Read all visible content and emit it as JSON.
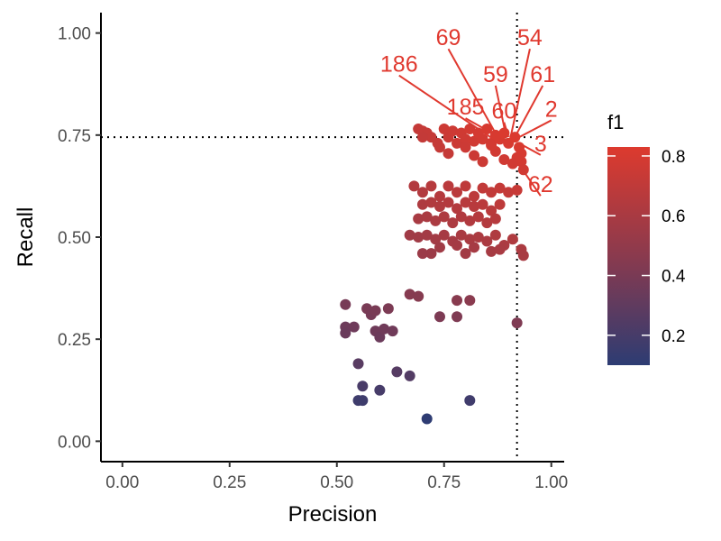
{
  "chart_data": {
    "type": "scatter",
    "xlabel": "Precision",
    "ylabel": "Recall",
    "xlim": [
      -0.05,
      1.03
    ],
    "ylim": [
      -0.05,
      1.05
    ],
    "x_ticks": [
      0.0,
      0.25,
      0.5,
      0.75,
      1.0
    ],
    "x_tick_labels": [
      "0.00",
      "0.25",
      "0.50",
      "0.75",
      "1.00"
    ],
    "y_ticks": [
      0.0,
      0.25,
      0.5,
      0.75,
      1.0
    ],
    "y_tick_labels": [
      "0.00",
      "0.25",
      "0.50",
      "0.75",
      "1.00"
    ],
    "reference_lines": {
      "vertical_x": 0.92,
      "horizontal_y": 0.745,
      "style": "dotted"
    },
    "color_scale": {
      "variable": "f1",
      "low": 0.1,
      "high": 0.83,
      "low_color": "#2d3c73",
      "high_color": "#dd3a2e",
      "ticks": [
        0.2,
        0.4,
        0.6,
        0.8
      ],
      "tick_labels": [
        "0.2",
        "0.4",
        "0.6",
        "0.8"
      ]
    },
    "legend": {
      "title": "f1",
      "position": "right"
    },
    "points": [
      {
        "x": 0.69,
        "y": 0.765
      },
      {
        "x": 0.7,
        "y": 0.76
      },
      {
        "x": 0.71,
        "y": 0.755
      },
      {
        "x": 0.72,
        "y": 0.745
      },
      {
        "x": 0.735,
        "y": 0.73
      },
      {
        "x": 0.75,
        "y": 0.765
      },
      {
        "x": 0.76,
        "y": 0.745
      },
      {
        "x": 0.77,
        "y": 0.76
      },
      {
        "x": 0.78,
        "y": 0.73
      },
      {
        "x": 0.79,
        "y": 0.755
      },
      {
        "x": 0.8,
        "y": 0.74
      },
      {
        "x": 0.81,
        "y": 0.765
      },
      {
        "x": 0.82,
        "y": 0.735
      },
      {
        "x": 0.83,
        "y": 0.755
      },
      {
        "x": 0.84,
        "y": 0.74
      },
      {
        "x": 0.85,
        "y": 0.765
      },
      {
        "x": 0.86,
        "y": 0.73
      },
      {
        "x": 0.87,
        "y": 0.75
      },
      {
        "x": 0.88,
        "y": 0.74
      },
      {
        "x": 0.89,
        "y": 0.755
      },
      {
        "x": 0.9,
        "y": 0.73
      },
      {
        "x": 0.915,
        "y": 0.745
      },
      {
        "x": 0.925,
        "y": 0.72
      },
      {
        "x": 0.93,
        "y": 0.705
      },
      {
        "x": 0.93,
        "y": 0.685
      },
      {
        "x": 0.935,
        "y": 0.665
      },
      {
        "x": 0.92,
        "y": 0.695
      },
      {
        "x": 0.76,
        "y": 0.705
      },
      {
        "x": 0.8,
        "y": 0.72
      },
      {
        "x": 0.82,
        "y": 0.7
      },
      {
        "x": 0.84,
        "y": 0.685
      },
      {
        "x": 0.87,
        "y": 0.71
      },
      {
        "x": 0.89,
        "y": 0.69
      },
      {
        "x": 0.91,
        "y": 0.68
      },
      {
        "x": 0.7,
        "y": 0.745
      },
      {
        "x": 0.74,
        "y": 0.72
      },
      {
        "x": 0.86,
        "y": 0.725
      },
      {
        "x": 0.68,
        "y": 0.625
      },
      {
        "x": 0.7,
        "y": 0.61
      },
      {
        "x": 0.72,
        "y": 0.625
      },
      {
        "x": 0.74,
        "y": 0.6
      },
      {
        "x": 0.76,
        "y": 0.625
      },
      {
        "x": 0.78,
        "y": 0.61
      },
      {
        "x": 0.8,
        "y": 0.625
      },
      {
        "x": 0.82,
        "y": 0.6
      },
      {
        "x": 0.84,
        "y": 0.62
      },
      {
        "x": 0.86,
        "y": 0.61
      },
      {
        "x": 0.88,
        "y": 0.62
      },
      {
        "x": 0.9,
        "y": 0.61
      },
      {
        "x": 0.92,
        "y": 0.615
      },
      {
        "x": 0.7,
        "y": 0.58
      },
      {
        "x": 0.72,
        "y": 0.585
      },
      {
        "x": 0.74,
        "y": 0.575
      },
      {
        "x": 0.76,
        "y": 0.585
      },
      {
        "x": 0.78,
        "y": 0.57
      },
      {
        "x": 0.8,
        "y": 0.585
      },
      {
        "x": 0.82,
        "y": 0.575
      },
      {
        "x": 0.84,
        "y": 0.58
      },
      {
        "x": 0.86,
        "y": 0.565
      },
      {
        "x": 0.88,
        "y": 0.58
      },
      {
        "x": 0.69,
        "y": 0.545
      },
      {
        "x": 0.71,
        "y": 0.55
      },
      {
        "x": 0.73,
        "y": 0.54
      },
      {
        "x": 0.75,
        "y": 0.55
      },
      {
        "x": 0.77,
        "y": 0.535
      },
      {
        "x": 0.79,
        "y": 0.55
      },
      {
        "x": 0.81,
        "y": 0.54
      },
      {
        "x": 0.83,
        "y": 0.55
      },
      {
        "x": 0.85,
        "y": 0.535
      },
      {
        "x": 0.87,
        "y": 0.545
      },
      {
        "x": 0.67,
        "y": 0.505
      },
      {
        "x": 0.69,
        "y": 0.5
      },
      {
        "x": 0.71,
        "y": 0.505
      },
      {
        "x": 0.73,
        "y": 0.495
      },
      {
        "x": 0.75,
        "y": 0.505
      },
      {
        "x": 0.77,
        "y": 0.49
      },
      {
        "x": 0.79,
        "y": 0.505
      },
      {
        "x": 0.81,
        "y": 0.495
      },
      {
        "x": 0.83,
        "y": 0.5
      },
      {
        "x": 0.85,
        "y": 0.49
      },
      {
        "x": 0.87,
        "y": 0.505
      },
      {
        "x": 0.89,
        "y": 0.48
      },
      {
        "x": 0.91,
        "y": 0.495
      },
      {
        "x": 0.93,
        "y": 0.47
      },
      {
        "x": 0.935,
        "y": 0.455
      },
      {
        "x": 0.72,
        "y": 0.46
      },
      {
        "x": 0.74,
        "y": 0.475
      },
      {
        "x": 0.78,
        "y": 0.48
      },
      {
        "x": 0.8,
        "y": 0.46
      },
      {
        "x": 0.82,
        "y": 0.475
      },
      {
        "x": 0.86,
        "y": 0.465
      },
      {
        "x": 0.88,
        "y": 0.47
      },
      {
        "x": 0.7,
        "y": 0.46
      },
      {
        "x": 0.67,
        "y": 0.36
      },
      {
        "x": 0.69,
        "y": 0.355
      },
      {
        "x": 0.78,
        "y": 0.345
      },
      {
        "x": 0.81,
        "y": 0.345
      },
      {
        "x": 0.74,
        "y": 0.305
      },
      {
        "x": 0.78,
        "y": 0.305
      },
      {
        "x": 0.92,
        "y": 0.29
      },
      {
        "x": 0.52,
        "y": 0.335
      },
      {
        "x": 0.57,
        "y": 0.325
      },
      {
        "x": 0.58,
        "y": 0.31
      },
      {
        "x": 0.59,
        "y": 0.32
      },
      {
        "x": 0.62,
        "y": 0.325
      },
      {
        "x": 0.52,
        "y": 0.28
      },
      {
        "x": 0.52,
        "y": 0.265
      },
      {
        "x": 0.54,
        "y": 0.28
      },
      {
        "x": 0.59,
        "y": 0.27
      },
      {
        "x": 0.6,
        "y": 0.255
      },
      {
        "x": 0.61,
        "y": 0.275
      },
      {
        "x": 0.63,
        "y": 0.27
      },
      {
        "x": 0.55,
        "y": 0.19
      },
      {
        "x": 0.64,
        "y": 0.17
      },
      {
        "x": 0.67,
        "y": 0.16
      },
      {
        "x": 0.56,
        "y": 0.135
      },
      {
        "x": 0.6,
        "y": 0.125
      },
      {
        "x": 0.55,
        "y": 0.1
      },
      {
        "x": 0.56,
        "y": 0.1
      },
      {
        "x": 0.81,
        "y": 0.1
      },
      {
        "x": 0.71,
        "y": 0.055
      }
    ],
    "annotations": [
      {
        "label": "69",
        "x": 0.76,
        "y": 0.97,
        "px": 0.875,
        "py": 0.745
      },
      {
        "label": "54",
        "x": 0.95,
        "y": 0.97,
        "px": 0.905,
        "py": 0.745
      },
      {
        "label": "186",
        "x": 0.645,
        "y": 0.905,
        "px": 0.865,
        "py": 0.74
      },
      {
        "label": "59",
        "x": 0.87,
        "y": 0.88,
        "px": 0.895,
        "py": 0.745
      },
      {
        "label": "61",
        "x": 0.98,
        "y": 0.88,
        "px": 0.915,
        "py": 0.745
      },
      {
        "label": "185",
        "x": 0.8,
        "y": 0.8,
        "px": 0.87,
        "py": 0.75
      },
      {
        "label": "60",
        "x": 0.89,
        "y": 0.79,
        "px": 0.9,
        "py": 0.745
      },
      {
        "label": "2",
        "x": 1.0,
        "y": 0.795,
        "px": 0.925,
        "py": 0.745
      },
      {
        "label": "3",
        "x": 0.975,
        "y": 0.71,
        "px": 0.925,
        "py": 0.73
      },
      {
        "label": "62",
        "x": 0.975,
        "y": 0.61,
        "px": 0.93,
        "py": 0.67
      }
    ]
  }
}
